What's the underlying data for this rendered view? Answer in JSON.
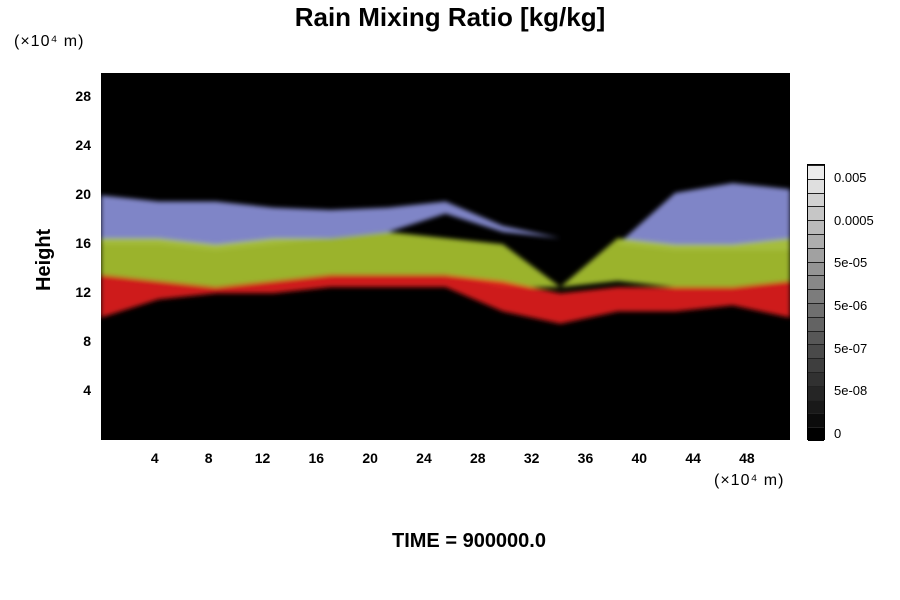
{
  "chart_data": {
    "type": "heatmap",
    "title": "Rain Mixing Ratio [kg/kg]",
    "xlabel": "",
    "ylabel": "Height",
    "x_unit": "(×10⁴ m)",
    "y_unit": "(×10⁴ m)",
    "xlim": [
      0,
      51.2
    ],
    "ylim": [
      0,
      30
    ],
    "x_ticks": [
      "4",
      "8",
      "12",
      "16",
      "20",
      "24",
      "28",
      "32",
      "36",
      "40",
      "44",
      "48"
    ],
    "y_ticks": [
      "4",
      "8",
      "12",
      "16",
      "20",
      "24",
      "28"
    ],
    "colorbar": {
      "labels": [
        "0.005",
        "0.0005",
        "5e-05",
        "5e-06",
        "5e-07",
        "5e-08",
        "0"
      ],
      "levels": 20
    },
    "layers": [
      {
        "name": "blue",
        "color": "#8a90d8",
        "bottom": [
          16,
          16,
          15.5,
          16,
          16.5,
          17,
          18.5,
          17,
          16.5,
          16,
          15.5,
          15.5,
          15.5
        ],
        "top": [
          20,
          19.5,
          19.5,
          19,
          18.8,
          19,
          19.5,
          17.5,
          0,
          0,
          20.2,
          21,
          20.5
        ]
      },
      {
        "name": "yellow-green",
        "color": "#a8c232",
        "bottom": [
          13.5,
          13,
          12.5,
          13,
          13.5,
          13.5,
          13.5,
          12.5,
          12.5,
          13,
          12.5,
          12.5,
          13
        ],
        "top": [
          16.5,
          16.5,
          16,
          16.5,
          16.5,
          17,
          16.5,
          16,
          12.5,
          16.5,
          16,
          16,
          16.5
        ]
      },
      {
        "name": "red",
        "color": "#e01b1b",
        "bottom": [
          10,
          11.5,
          12,
          12,
          12.5,
          12.5,
          12.5,
          10.5,
          9.5,
          10.5,
          10.5,
          11,
          10
        ],
        "top": [
          13.5,
          13,
          12.5,
          13,
          13.5,
          13.5,
          13.5,
          13,
          12,
          12.5,
          12.5,
          12.5,
          13
        ]
      }
    ]
  },
  "time_label": "TIME = 900000.0"
}
